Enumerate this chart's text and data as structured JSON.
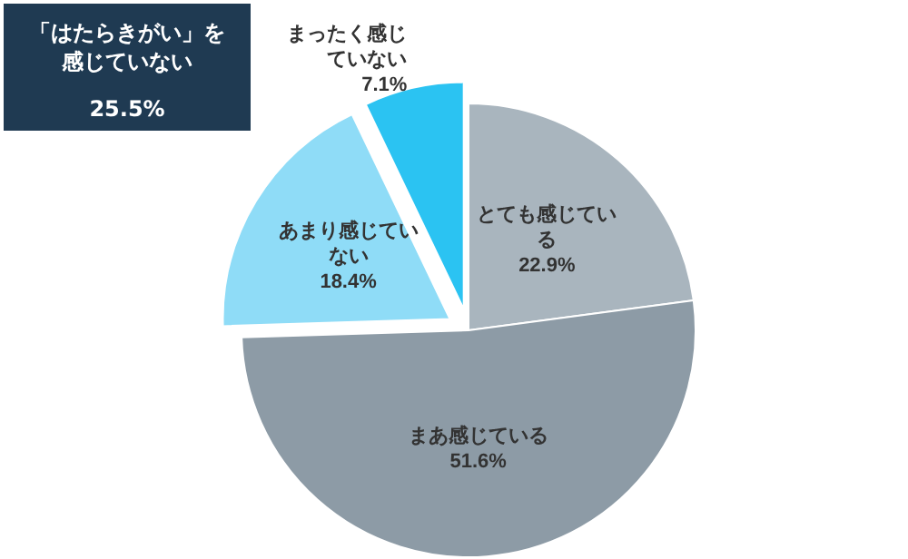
{
  "chart_data": {
    "type": "pie",
    "categories": [
      "とても感じている",
      "まあ感じている",
      "あまり感じていない",
      "まったく感じていない"
    ],
    "values": [
      22.9,
      51.6,
      18.4,
      7.1
    ],
    "colors": [
      "#a9b5be",
      "#8d9ba6",
      "#8fdcf7",
      "#2bc3f2"
    ],
    "value_labels": [
      "22.9%",
      "51.6%",
      "18.4%",
      "7.1%"
    ],
    "annotations": [
      "「はたらきがい」を感じていない",
      "25.5%"
    ]
  }
}
